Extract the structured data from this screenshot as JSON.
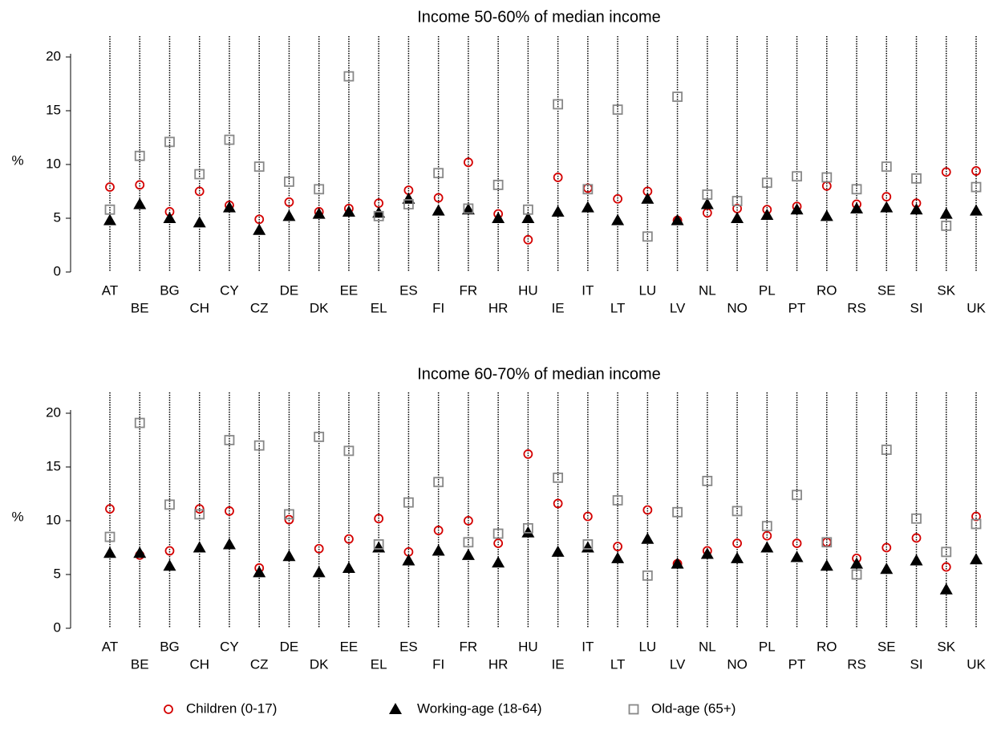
{
  "chart_data": [
    {
      "type": "scatter",
      "title": "Income 50-60% of median income",
      "ylabel": "%",
      "categories": [
        "AT",
        "BE",
        "BG",
        "CH",
        "CY",
        "CZ",
        "DE",
        "DK",
        "EE",
        "EL",
        "ES",
        "FI",
        "FR",
        "HR",
        "HU",
        "IE",
        "IT",
        "LT",
        "LU",
        "LV",
        "NL",
        "NO",
        "PL",
        "PT",
        "RO",
        "RS",
        "SE",
        "SI",
        "SK",
        "UK"
      ],
      "ylim": [
        0,
        20
      ],
      "yticks": [
        0,
        5,
        10,
        15,
        20
      ],
      "series": [
        {
          "name": "Children (0-17)",
          "color": "#d40000",
          "marker": "circle",
          "values": [
            7.9,
            8.1,
            5.6,
            7.5,
            6.2,
            4.9,
            6.5,
            5.6,
            5.9,
            6.4,
            7.6,
            6.9,
            10.2,
            5.4,
            3.0,
            8.8,
            7.8,
            6.8,
            7.5,
            4.8,
            5.5,
            5.9,
            5.8,
            6.1,
            8.0,
            6.3,
            7.0,
            6.4,
            9.3,
            9.4
          ]
        },
        {
          "name": "Working-age (18-64)",
          "color": "#000000",
          "marker": "triangle",
          "values": [
            4.8,
            6.3,
            5.0,
            4.6,
            6.0,
            3.9,
            5.2,
            5.4,
            5.6,
            5.5,
            6.8,
            5.7,
            5.8,
            5.0,
            5.0,
            5.6,
            6.0,
            4.8,
            6.8,
            4.8,
            6.3,
            5.0,
            5.3,
            5.8,
            5.2,
            5.9,
            6.0,
            5.8,
            5.4,
            5.7
          ]
        },
        {
          "name": "Old-age (65+)",
          "color": "#888888",
          "marker": "square",
          "values": [
            5.8,
            10.8,
            12.1,
            9.1,
            12.3,
            9.8,
            8.4,
            7.7,
            18.2,
            5.2,
            6.3,
            9.2,
            5.9,
            8.1,
            5.8,
            15.6,
            7.7,
            15.1,
            3.3,
            16.3,
            7.2,
            6.6,
            8.3,
            8.9,
            8.8,
            7.7,
            9.8,
            8.7,
            4.3,
            7.9
          ]
        }
      ]
    },
    {
      "type": "scatter",
      "title": "Income 60-70% of median income",
      "ylabel": "%",
      "categories": [
        "AT",
        "BE",
        "BG",
        "CH",
        "CY",
        "CZ",
        "DE",
        "DK",
        "EE",
        "EL",
        "ES",
        "FI",
        "FR",
        "HR",
        "HU",
        "IE",
        "IT",
        "LT",
        "LU",
        "LV",
        "NL",
        "NO",
        "PL",
        "PT",
        "RO",
        "RS",
        "SE",
        "SI",
        "SK",
        "UK"
      ],
      "ylim": [
        0,
        20
      ],
      "yticks": [
        0,
        5,
        10,
        15,
        20
      ],
      "series": [
        {
          "color": "#d40000",
          "marker": "circle",
          "values": [
            11.1,
            6.8,
            7.2,
            11.1,
            10.9,
            5.6,
            10.1,
            7.4,
            8.3,
            10.2,
            7.1,
            9.1,
            10.0,
            7.9,
            16.2,
            11.6,
            10.4,
            7.6,
            11.0,
            6.0,
            7.2,
            7.9,
            8.6,
            7.9,
            8.0,
            6.5,
            7.5,
            8.4,
            5.7,
            10.4
          ]
        },
        {
          "color": "#000000",
          "marker": "triangle",
          "values": [
            7.0,
            7.0,
            5.8,
            7.5,
            7.8,
            5.2,
            6.7,
            5.2,
            5.6,
            7.5,
            6.3,
            7.2,
            6.8,
            6.1,
            8.9,
            7.1,
            7.5,
            6.5,
            8.3,
            6.0,
            6.9,
            6.5,
            7.5,
            6.6,
            5.8,
            6.0,
            5.5,
            6.3,
            3.6,
            6.4
          ]
        },
        {
          "color": "#888888",
          "marker": "square",
          "values": [
            8.5,
            19.1,
            11.5,
            10.6,
            17.5,
            17.0,
            10.6,
            17.8,
            16.5,
            7.8,
            11.7,
            13.6,
            8.0,
            8.8,
            9.3,
            14.0,
            7.8,
            11.9,
            4.9,
            10.8,
            13.7,
            10.9,
            9.5,
            12.4,
            8.0,
            5.0,
            16.6,
            10.2,
            7.1,
            9.7
          ]
        }
      ]
    }
  ]
}
